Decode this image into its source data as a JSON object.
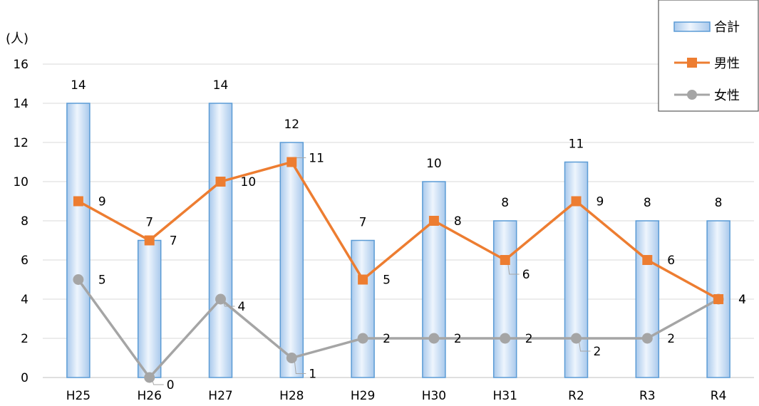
{
  "chart_data": {
    "type": "bar",
    "categories": [
      "H25",
      "H26",
      "H27",
      "H28",
      "H29",
      "H30",
      "H31",
      "R2",
      "R3",
      "R4"
    ],
    "ylabel": "(人)",
    "ylim": [
      0,
      16
    ],
    "yticks": [
      0,
      2,
      4,
      6,
      8,
      10,
      12,
      14,
      16
    ],
    "grid": true,
    "legend_position": "top-right",
    "series": [
      {
        "name": "合計",
        "type": "bar",
        "values": [
          14,
          7,
          14,
          12,
          7,
          10,
          8,
          11,
          8,
          8
        ],
        "color": "#5b9bd5"
      },
      {
        "name": "男性",
        "type": "line",
        "marker": "square",
        "values": [
          9,
          7,
          10,
          11,
          5,
          8,
          6,
          9,
          6,
          4
        ],
        "color": "#ed7d31"
      },
      {
        "name": "女性",
        "type": "line",
        "marker": "circle",
        "values": [
          5,
          0,
          4,
          1,
          2,
          2,
          2,
          2,
          2,
          4
        ],
        "color": "#a5a5a5"
      }
    ]
  }
}
